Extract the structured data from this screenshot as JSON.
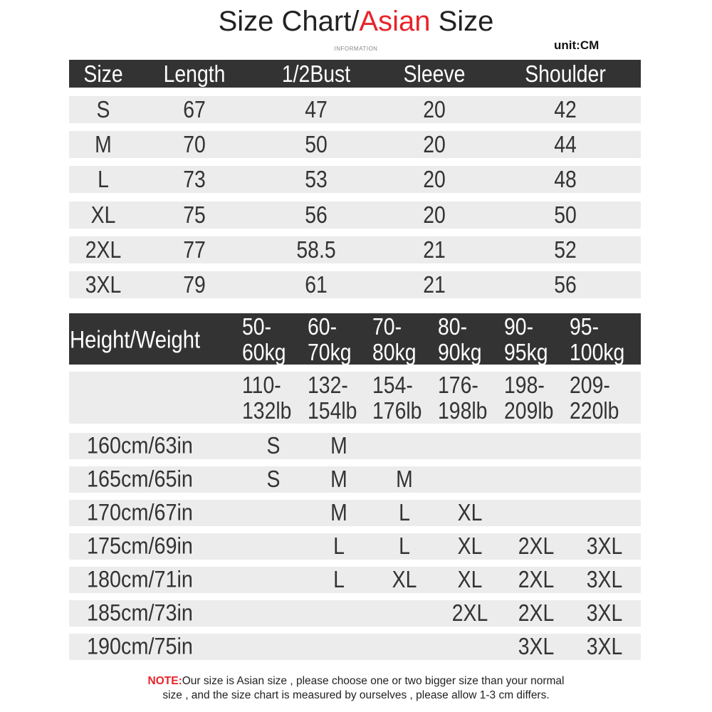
{
  "header": {
    "title_part1": "Size Chart/",
    "title_highlight": "Asian",
    "title_part2": " Size",
    "subtitle": "INFORMATION",
    "unit": "unit:CM",
    "accent_color": "#e8232a"
  },
  "size_table": {
    "columns": [
      "Size",
      "Length",
      "1/2Bust",
      "Sleeve",
      "Shoulder"
    ],
    "rows": [
      [
        "S",
        "67",
        "47",
        "20",
        "42"
      ],
      [
        "M",
        "70",
        "50",
        "20",
        "44"
      ],
      [
        "L",
        "73",
        "53",
        "20",
        "48"
      ],
      [
        "XL",
        "75",
        "56",
        "20",
        "50"
      ],
      [
        "2XL",
        "77",
        "58.5",
        "21",
        "52"
      ],
      [
        "3XL",
        "79",
        "61",
        "21",
        "56"
      ]
    ]
  },
  "fit_table": {
    "corner": "Height/Weight",
    "kg_ranges": [
      [
        "50-",
        "60kg"
      ],
      [
        "60-",
        "70kg"
      ],
      [
        "70-",
        "80kg"
      ],
      [
        "80-",
        "90kg"
      ],
      [
        "90-",
        "95kg"
      ],
      [
        "95-",
        "100kg"
      ]
    ],
    "lb_ranges": [
      [
        "110-",
        "132lb"
      ],
      [
        "132-",
        "154lb"
      ],
      [
        "154-",
        "176lb"
      ],
      [
        "176-",
        "198lb"
      ],
      [
        "198-",
        "209lb"
      ],
      [
        "209-",
        "220lb"
      ]
    ],
    "rows": [
      {
        "height": "160cm/63in",
        "sizes": [
          "S",
          "M",
          "",
          "",
          "",
          ""
        ]
      },
      {
        "height": "165cm/65in",
        "sizes": [
          "S",
          "M",
          "M",
          "",
          "",
          ""
        ]
      },
      {
        "height": "170cm/67in",
        "sizes": [
          "",
          "M",
          "L",
          "XL",
          "",
          ""
        ]
      },
      {
        "height": "175cm/69in",
        "sizes": [
          "",
          "L",
          "L",
          "XL",
          "2XL",
          "3XL"
        ]
      },
      {
        "height": "180cm/71in",
        "sizes": [
          "",
          "L",
          "XL",
          "XL",
          "2XL",
          "3XL"
        ]
      },
      {
        "height": "185cm/73in",
        "sizes": [
          "",
          "",
          "",
          "2XL",
          "2XL",
          "3XL"
        ]
      },
      {
        "height": "190cm/75in",
        "sizes": [
          "",
          "",
          "",
          "",
          "3XL",
          "3XL"
        ]
      }
    ]
  },
  "note": {
    "label": "NOTE:",
    "line1": "Our size is Asian size , please choose one or two bigger size than your normal",
    "line2": "size , and the size chart is measured by ourselves , please allow 1-3 cm differs."
  }
}
